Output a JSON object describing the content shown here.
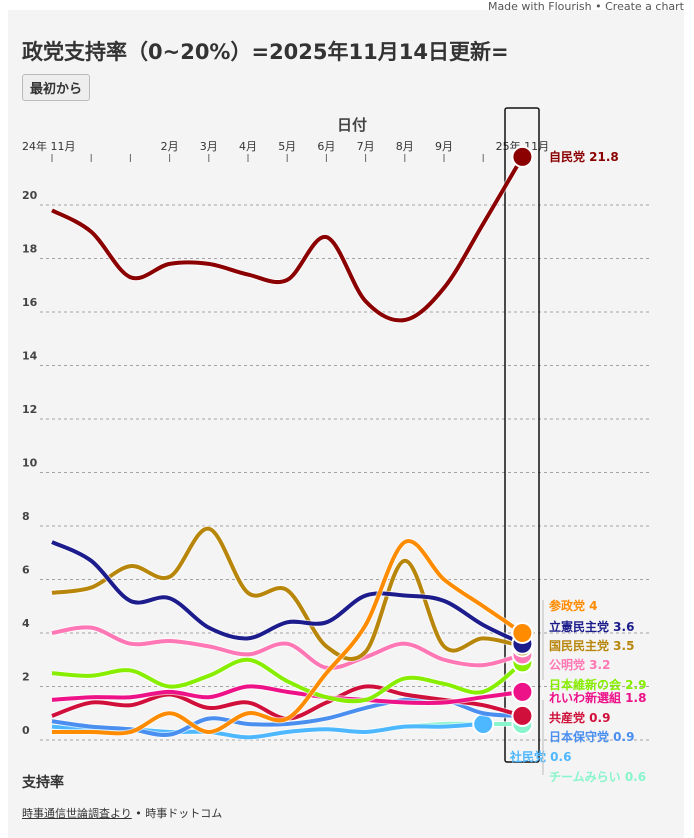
{
  "header": {
    "credit": "Made with Flourish • Create a chart",
    "title": "政党支持率（0~20%）=2025年11月14日更新=",
    "reset_label": "最初から"
  },
  "footer": {
    "source_link": "時事通信世論調査より",
    "separator": " • ",
    "publisher": "時事ドットコム"
  },
  "chart_data": {
    "type": "line",
    "title": "政党支持率（0~20%）=2025年11月14日更新=",
    "xlabel": "日付",
    "ylabel": "支持率",
    "x": [
      "2024-11",
      "2024-12",
      "2025-01",
      "2025-02",
      "2025-03",
      "2025-04",
      "2025-05",
      "2025-06",
      "2025-07",
      "2025-08",
      "2025-09",
      "2025-10",
      "2025-11"
    ],
    "x_tick_labels": [
      "24年 11月",
      "",
      "",
      "2月",
      "3月",
      "4月",
      "5月",
      "6月",
      "7月",
      "8月",
      "9月",
      "",
      "25年 11月"
    ],
    "y_ticks": [
      0,
      2,
      4,
      6,
      8,
      10,
      12,
      14,
      16,
      18,
      20
    ],
    "ylim": [
      0,
      22
    ],
    "grid": "horizontal dashed",
    "series": [
      {
        "name": "自民党",
        "label": "自民党 21.8",
        "color": "#8b0000",
        "values": [
          19.8,
          19.0,
          17.3,
          17.8,
          17.8,
          17.4,
          17.2,
          18.8,
          16.4,
          15.7,
          16.9,
          19.3,
          21.8
        ]
      },
      {
        "name": "参政党",
        "label": "参政党 4",
        "color": "#ff8c00",
        "values": [
          0.3,
          0.3,
          0.3,
          1.0,
          0.3,
          1.0,
          0.8,
          2.5,
          4.3,
          7.4,
          6.0,
          5.0,
          4.0
        ]
      },
      {
        "name": "立憲民主党",
        "label": "立憲民主党 3.6",
        "color": "#1c1c8c",
        "values": [
          7.4,
          6.7,
          5.2,
          5.3,
          4.2,
          3.8,
          4.4,
          4.4,
          5.4,
          5.4,
          5.2,
          4.3,
          3.6
        ]
      },
      {
        "name": "国民民主党",
        "label": "国民民主党 3.5",
        "color": "#b8860b",
        "values": [
          5.5,
          5.7,
          6.5,
          6.1,
          7.9,
          5.5,
          5.6,
          3.5,
          3.3,
          6.7,
          3.5,
          3.8,
          3.5
        ]
      },
      {
        "name": "公明党",
        "label": "公明党 3.2",
        "color": "#ff77b4",
        "values": [
          4.0,
          4.2,
          3.6,
          3.7,
          3.5,
          3.2,
          3.6,
          2.7,
          3.1,
          3.6,
          3.0,
          2.8,
          3.2
        ]
      },
      {
        "name": "日本維新の会",
        "label": "日本維新の会 2.9",
        "color": "#88ee00",
        "values": [
          2.5,
          2.4,
          2.6,
          2.0,
          2.4,
          3.0,
          2.2,
          1.6,
          1.5,
          2.3,
          2.1,
          1.8,
          2.9
        ]
      },
      {
        "name": "れいわ新選組",
        "label": "れいわ新選組 1.8",
        "color": "#ee1289",
        "values": [
          1.5,
          1.6,
          1.6,
          1.8,
          1.6,
          2.0,
          1.8,
          1.6,
          1.5,
          1.4,
          1.4,
          1.6,
          1.8
        ]
      },
      {
        "name": "共産党",
        "label": "共産党 0.9",
        "color": "#d0103a",
        "values": [
          0.9,
          1.4,
          1.3,
          1.7,
          1.2,
          1.4,
          0.8,
          1.4,
          2.0,
          1.7,
          1.5,
          1.3,
          0.9
        ]
      },
      {
        "name": "日本保守党",
        "label": "日本保守党 0.9",
        "color": "#4a8ff0",
        "values": [
          0.7,
          0.5,
          0.4,
          0.2,
          0.8,
          0.6,
          0.6,
          0.8,
          1.2,
          1.5,
          1.5,
          1.0,
          0.9
        ]
      },
      {
        "name": "社民党",
        "label": "社民党 0.6",
        "color": "#4db8ff",
        "values": [
          0.5,
          0.4,
          0.4,
          0.3,
          0.3,
          0.1,
          0.3,
          0.4,
          0.3,
          0.5,
          0.5,
          0.6,
          null
        ]
      },
      {
        "name": "チームみらい",
        "label": "チームみらい 0.6",
        "color": "#88f5cc",
        "values": [
          null,
          null,
          null,
          null,
          null,
          null,
          null,
          null,
          null,
          0.5,
          0.6,
          0.6,
          0.6
        ]
      }
    ]
  }
}
